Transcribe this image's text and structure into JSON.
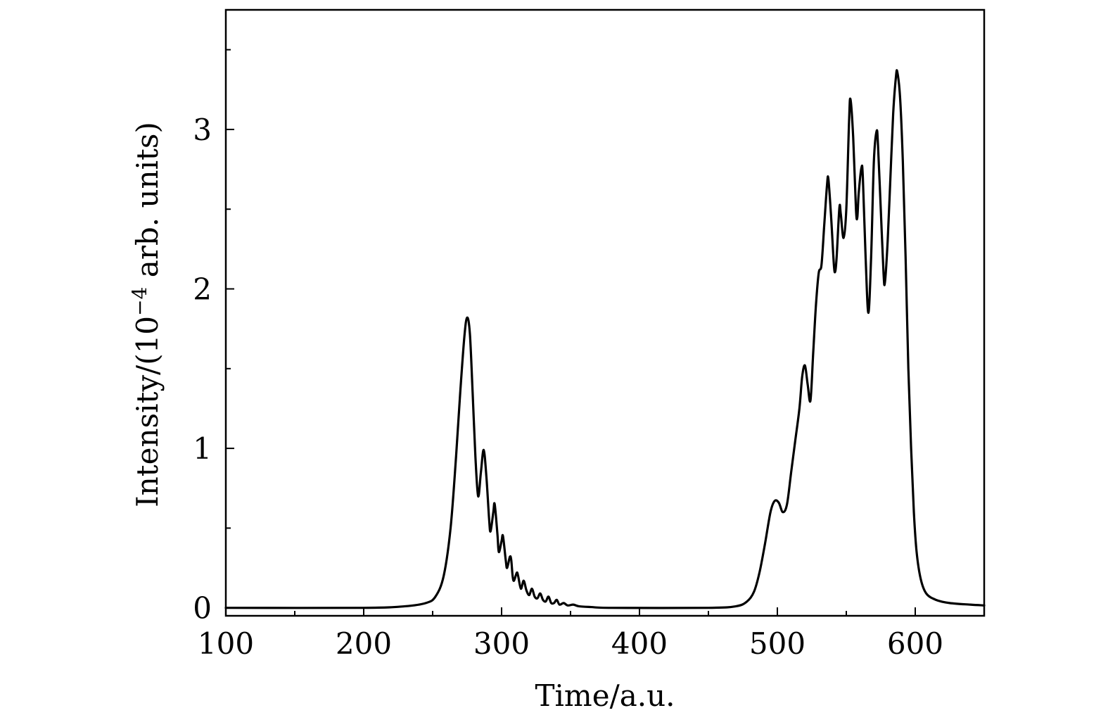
{
  "chart_data": {
    "type": "line",
    "title": "",
    "xlabel": "Time/a.u.",
    "ylabel_main": "Intensity/(10",
    "ylabel_exp": "−4",
    "ylabel_tail": " arb. units)",
    "xlim": [
      100,
      650
    ],
    "ylim": [
      -0.05,
      3.75
    ],
    "grid": false,
    "legend": "none",
    "x_ticks_major": [
      100,
      200,
      300,
      400,
      500,
      600
    ],
    "x_ticks_minor": [
      150,
      250,
      350,
      450,
      550,
      650
    ],
    "y_ticks_major": [
      0,
      1,
      2,
      3
    ],
    "y_ticks_minor": [
      0.5,
      1.5,
      2.5,
      3.5
    ],
    "x_tick_labels": [
      "100",
      "200",
      "300",
      "400",
      "500",
      "600"
    ],
    "y_tick_labels": [
      "0",
      "1",
      "2",
      "3"
    ],
    "series": [
      {
        "color": "#000000",
        "points": [
          [
            100,
            0.0
          ],
          [
            200,
            0.0
          ],
          [
            230,
            0.01
          ],
          [
            245,
            0.03
          ],
          [
            252,
            0.07
          ],
          [
            258,
            0.2
          ],
          [
            263,
            0.5
          ],
          [
            267,
            0.95
          ],
          [
            270,
            1.35
          ],
          [
            273,
            1.7
          ],
          [
            275,
            1.82
          ],
          [
            277,
            1.72
          ],
          [
            279,
            1.35
          ],
          [
            281,
            0.95
          ],
          [
            283,
            0.7
          ],
          [
            285,
            0.85
          ],
          [
            287,
            0.99
          ],
          [
            289,
            0.82
          ],
          [
            291,
            0.55
          ],
          [
            292,
            0.48
          ],
          [
            294,
            0.6
          ],
          [
            295,
            0.65
          ],
          [
            297,
            0.46
          ],
          [
            298,
            0.35
          ],
          [
            300,
            0.42
          ],
          [
            301,
            0.45
          ],
          [
            303,
            0.3
          ],
          [
            304,
            0.25
          ],
          [
            306,
            0.32
          ],
          [
            307,
            0.3
          ],
          [
            308,
            0.2
          ],
          [
            309,
            0.17
          ],
          [
            311,
            0.22
          ],
          [
            312,
            0.2
          ],
          [
            314,
            0.12
          ],
          [
            316,
            0.17
          ],
          [
            318,
            0.11
          ],
          [
            320,
            0.08
          ],
          [
            322,
            0.12
          ],
          [
            324,
            0.07
          ],
          [
            326,
            0.06
          ],
          [
            328,
            0.09
          ],
          [
            330,
            0.05
          ],
          [
            332,
            0.04
          ],
          [
            334,
            0.07
          ],
          [
            336,
            0.03
          ],
          [
            338,
            0.03
          ],
          [
            340,
            0.05
          ],
          [
            342,
            0.02
          ],
          [
            345,
            0.03
          ],
          [
            348,
            0.015
          ],
          [
            352,
            0.02
          ],
          [
            356,
            0.01
          ],
          [
            365,
            0.005
          ],
          [
            380,
            0.0
          ],
          [
            450,
            0.0
          ],
          [
            470,
            0.01
          ],
          [
            478,
            0.04
          ],
          [
            483,
            0.1
          ],
          [
            487,
            0.22
          ],
          [
            491,
            0.4
          ],
          [
            495,
            0.6
          ],
          [
            498,
            0.67
          ],
          [
            501,
            0.66
          ],
          [
            504,
            0.6
          ],
          [
            507,
            0.65
          ],
          [
            510,
            0.85
          ],
          [
            513,
            1.05
          ],
          [
            516,
            1.25
          ],
          [
            518,
            1.45
          ],
          [
            520,
            1.52
          ],
          [
            522,
            1.4
          ],
          [
            524,
            1.3
          ],
          [
            526,
            1.6
          ],
          [
            528,
            1.9
          ],
          [
            530,
            2.1
          ],
          [
            532,
            2.15
          ],
          [
            534,
            2.4
          ],
          [
            536,
            2.65
          ],
          [
            537,
            2.69
          ],
          [
            539,
            2.45
          ],
          [
            541,
            2.15
          ],
          [
            542,
            2.11
          ],
          [
            543,
            2.2
          ],
          [
            545,
            2.51
          ],
          [
            546,
            2.47
          ],
          [
            548,
            2.32
          ],
          [
            550,
            2.5
          ],
          [
            552,
            3.05
          ],
          [
            553,
            3.19
          ],
          [
            555,
            2.95
          ],
          [
            557,
            2.5
          ],
          [
            558,
            2.45
          ],
          [
            559,
            2.6
          ],
          [
            561,
            2.76
          ],
          [
            562,
            2.7
          ],
          [
            564,
            2.2
          ],
          [
            566,
            1.85
          ],
          [
            568,
            2.2
          ],
          [
            570,
            2.8
          ],
          [
            572,
            2.99
          ],
          [
            573,
            2.9
          ],
          [
            575,
            2.5
          ],
          [
            577,
            2.1
          ],
          [
            578,
            2.04
          ],
          [
            580,
            2.3
          ],
          [
            582,
            2.7
          ],
          [
            584,
            3.1
          ],
          [
            586,
            3.33
          ],
          [
            587,
            3.36
          ],
          [
            589,
            3.2
          ],
          [
            591,
            2.8
          ],
          [
            593,
            2.2
          ],
          [
            595,
            1.5
          ],
          [
            597,
            1.0
          ],
          [
            599,
            0.6
          ],
          [
            601,
            0.35
          ],
          [
            604,
            0.18
          ],
          [
            608,
            0.09
          ],
          [
            615,
            0.05
          ],
          [
            625,
            0.03
          ],
          [
            640,
            0.02
          ],
          [
            650,
            0.015
          ]
        ]
      }
    ]
  }
}
